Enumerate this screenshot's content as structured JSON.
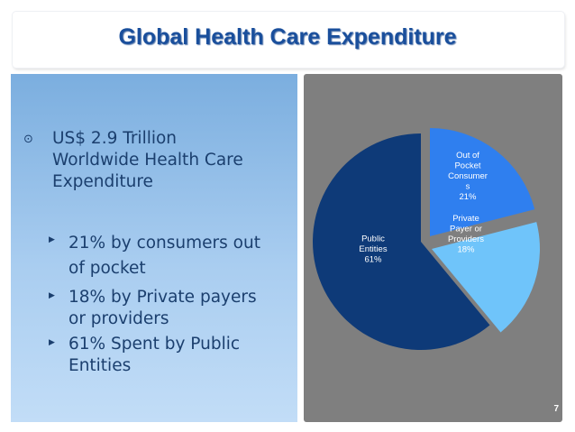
{
  "slide": {
    "title": "Global Health Care Expenditure",
    "page_number": "7"
  },
  "bullets": {
    "main_marker": "⊙",
    "main": [
      "US$ 2.9 Trillion",
      "Worldwide Health Care",
      "Expenditure"
    ],
    "sub_marker": "▶",
    "sub": [
      [
        "21% by consumers out",
        "of pocket"
      ],
      [
        "18% by Private payers",
        "or providers"
      ],
      [
        "61% Spent by Public",
        "Entities"
      ]
    ]
  },
  "colors": {
    "title": "#1a4f9c",
    "panel_bg": "#7f7f7f",
    "slice_consumers": "#2f7fef",
    "slice_private": "#6fc4fa",
    "slice_public": "#0e3a78"
  },
  "chart_data": {
    "type": "pie",
    "title": "",
    "slices": [
      {
        "name": "Out of Pocket Consumers",
        "value": 21,
        "label_lines": [
          "Out of",
          "Pocket",
          "Consumer",
          "s",
          "21%"
        ]
      },
      {
        "name": "Private Payer or Providers",
        "value": 18,
        "label_lines": [
          "Private",
          "Payer or",
          "Providers",
          "18%"
        ]
      },
      {
        "name": "Public Entities",
        "value": 61,
        "label_lines": [
          "Public",
          "Entities",
          "61%"
        ]
      }
    ]
  }
}
